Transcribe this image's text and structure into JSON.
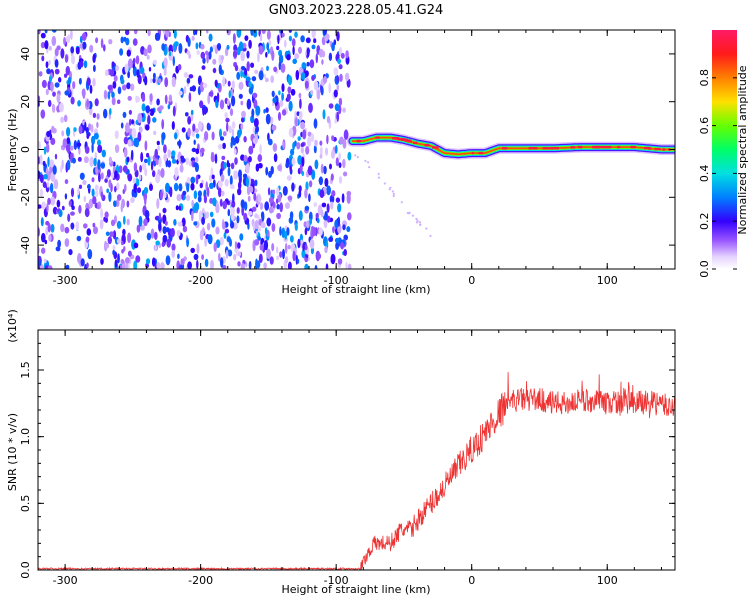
{
  "title": "GN03.2023.228.05.41.G24",
  "chart_data": [
    {
      "type": "heatmap",
      "xlabel": "Height of straight line (km)",
      "ylabel": "Frequency (Hz)",
      "xlim": [
        -320,
        150
      ],
      "ylim": [
        -50,
        50
      ],
      "x_ticks": [
        -300,
        -200,
        -100,
        0,
        100
      ],
      "y_ticks": [
        -40,
        -20,
        0,
        20,
        40
      ],
      "colorbar": {
        "label": "Normalized spectral amplitude",
        "range": [
          0,
          1
        ],
        "ticks": [
          "0.0",
          "0.2",
          "0.4",
          "0.6",
          "0.8"
        ],
        "tick_values": [
          0.0,
          0.2,
          0.4,
          0.6,
          0.8
        ]
      },
      "regions": [
        {
          "x_range": [
            -320,
            -90
          ],
          "freq_range": [
            -50,
            50
          ],
          "pattern": "broadband noise",
          "amplitude_range": [
            0.05,
            0.35
          ]
        },
        {
          "x_range": [
            -90,
            150
          ],
          "pattern": "narrow line near 0 Hz",
          "amplitude_max": 1.0
        }
      ],
      "line_track": {
        "x": [
          -88,
          -80,
          -70,
          -60,
          -50,
          -40,
          -30,
          -20,
          -10,
          0,
          10,
          20,
          40,
          60,
          80,
          100,
          120,
          140,
          150
        ],
        "freq": [
          3.5,
          3.5,
          5,
          5,
          4,
          2.5,
          1.5,
          -1.5,
          -2,
          -1.5,
          -1.5,
          0.5,
          0.5,
          0.5,
          1,
          1,
          1,
          0,
          0
        ]
      },
      "faint_tail": {
        "x": [
          -90,
          -80,
          -70,
          -60,
          -50,
          -40,
          -30
        ],
        "freq": [
          0,
          -4,
          -10,
          -17,
          -24,
          -30,
          -36
        ]
      }
    },
    {
      "type": "line",
      "xlabel": "Height of straight line (km)",
      "ylabel": "SNR (10 * v/v)",
      "y_multiplier": "(x10⁴)",
      "xlim": [
        -320,
        150
      ],
      "ylim": [
        0,
        1.8
      ],
      "x_ticks": [
        -300,
        -200,
        -100,
        0,
        100
      ],
      "y_ticks": [
        "0.0",
        "0.5",
        "1.0",
        "1.5"
      ],
      "y_tick_values": [
        0.0,
        0.5,
        1.0,
        1.5
      ],
      "color": "#ee3333",
      "series": [
        {
          "x": [
            -320,
            -300,
            -250,
            -200,
            -150,
            -100,
            -82,
            -78,
            -72,
            -66,
            -60,
            -52,
            -45,
            -38,
            -30,
            -22,
            -15,
            -8,
            0,
            8,
            15,
            22,
            30,
            40,
            50,
            60,
            70,
            80,
            90,
            100,
            110,
            120,
            130,
            140,
            150
          ],
          "values": [
            0.01,
            0.01,
            0.01,
            0.01,
            0.01,
            0.01,
            0.01,
            0.1,
            0.2,
            0.2,
            0.2,
            0.3,
            0.3,
            0.4,
            0.5,
            0.6,
            0.7,
            0.8,
            0.9,
            1.0,
            1.1,
            1.2,
            1.27,
            1.28,
            1.28,
            1.25,
            1.25,
            1.27,
            1.27,
            1.25,
            1.26,
            1.25,
            1.26,
            1.24,
            1.22
          ]
        }
      ]
    }
  ]
}
